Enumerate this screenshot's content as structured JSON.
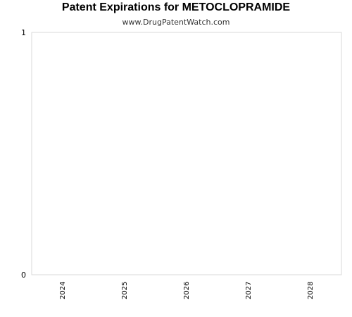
{
  "chart_data": {
    "type": "bar",
    "title": "Patent Expirations for METOCLOPRAMIDE",
    "subtitle": "www.DrugPatentWatch.com",
    "categories": [
      "2024",
      "2025",
      "2026",
      "2027",
      "2028"
    ],
    "series": [
      {
        "values": [
          0,
          0,
          0,
          0,
          0
        ]
      }
    ],
    "xlabel": "",
    "ylabel": "",
    "ylim": [
      0,
      1
    ],
    "y_ticks": [
      "0",
      "1"
    ],
    "grid": false,
    "legend": "none",
    "colors": {
      "axis": "#d9d9d9",
      "text": "#000000",
      "bar": "#4f81bd"
    }
  }
}
